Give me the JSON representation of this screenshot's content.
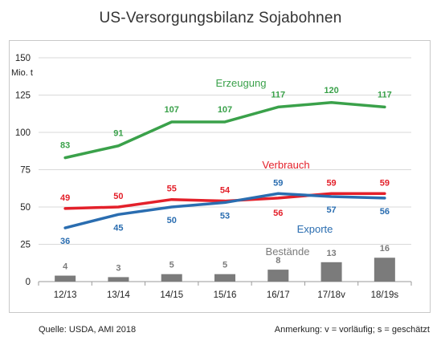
{
  "title": "US-Versorgungsbilanz  Sojabohnen",
  "footer": {
    "source": "Quelle: USDA, AMI 2018",
    "note": "Anmerkung: v = vorläufig; s = geschätzt"
  },
  "colors": {
    "erzeugung": "#3aa14a",
    "verbrauch": "#e3202a",
    "exporte": "#2a6db0",
    "bestaende": "#7b7b7b",
    "grid": "#d9d9d9"
  },
  "chart_data": {
    "type": "line",
    "title": "US-Versorgungsbilanz  Sojabohnen",
    "ylabel": "Mio. t",
    "xlabel": "",
    "ylim": [
      0,
      150
    ],
    "yticks": [
      0,
      25,
      50,
      75,
      100,
      125,
      150
    ],
    "grid": true,
    "categories": [
      "12/13",
      "13/14",
      "14/15",
      "15/16",
      "16/17",
      "17/18v",
      "18/19s"
    ],
    "series": [
      {
        "name": "Erzeugung",
        "type": "line",
        "color": "#3aa14a",
        "values": [
          83,
          91,
          107,
          107,
          117,
          120,
          117
        ]
      },
      {
        "name": "Verbrauch",
        "type": "line",
        "color": "#e3202a",
        "values": [
          49,
          50,
          55,
          54,
          56,
          59,
          59
        ]
      },
      {
        "name": "Exporte",
        "type": "line",
        "color": "#2a6db0",
        "values": [
          36,
          45,
          50,
          53,
          59,
          57,
          56
        ]
      },
      {
        "name": "Bestände",
        "type": "bar",
        "color": "#7b7b7b",
        "values": [
          4,
          3,
          5,
          5,
          8,
          13,
          16
        ]
      }
    ]
  }
}
